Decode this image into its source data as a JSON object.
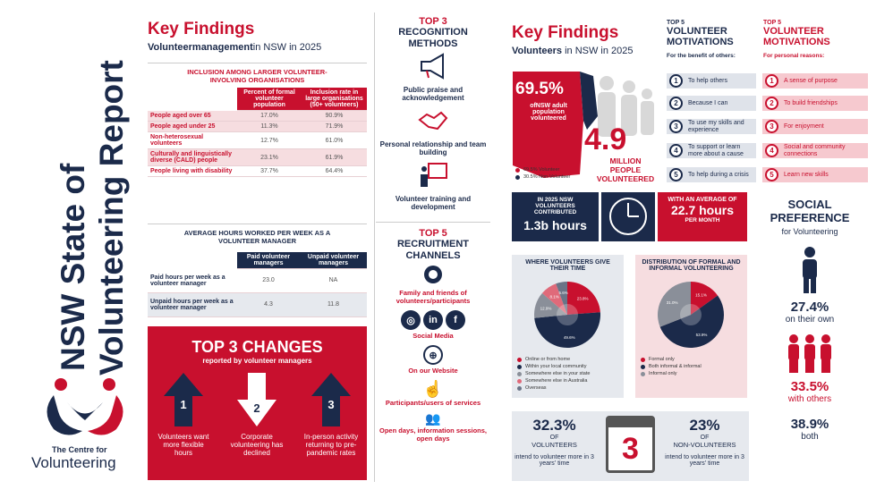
{
  "vertical_title": {
    "line1": "NSW State of",
    "line2": "Volunteering Report"
  },
  "logo": {
    "line1": "The Centre for",
    "line2": "Volunteering"
  },
  "left": {
    "title": "Key Findings",
    "subtitle_bold": "Volunteermanagement",
    "subtitle_rest": "in NSW in 2025",
    "inclusion": {
      "heading": "INCLUSION AMONG LARGER VOLUNTEER-INVOLVING ORGANISATIONS",
      "col1": "Percent of formal volunteer population",
      "col2": "Inclusion rate in large organisations (50+ volunteers)",
      "rows": [
        {
          "label": "People aged over 65",
          "a": "17.0%",
          "b": "90.9%"
        },
        {
          "label": "People aged under 25",
          "a": "11.3%",
          "b": "71.9%"
        },
        {
          "label": "Non-heterosexual volunteers",
          "a": "12.7%",
          "b": "61.0%"
        },
        {
          "label": "Culturally and linguistically diverse (CALD) people",
          "a": "23.1%",
          "b": "61.9%"
        },
        {
          "label": "People living with disability",
          "a": "37.7%",
          "b": "64.4%"
        }
      ]
    },
    "hours": {
      "heading": "AVERAGE HOURS WORKED PER WEEK AS A VOLUNTEER MANAGER",
      "col1": "Paid volunteer managers",
      "col2": "Unpaid volunteer managers",
      "rows": [
        {
          "label": "Paid hours per week as a volunteer manager",
          "a": "23.0",
          "b": "NA"
        },
        {
          "label": "Unpaid hours per week as a volunteer manager",
          "a": "4.3",
          "b": "11.8"
        }
      ]
    },
    "changes": {
      "title": "TOP 3 CHANGES",
      "subtitle": "reported by volunteer managers",
      "items": [
        {
          "n": "1",
          "text": "Volunteers want more flexible hours"
        },
        {
          "n": "2",
          "text": "Corporate volunteering has declined"
        },
        {
          "n": "3",
          "text": "In-person activity returning to pre-pandemic rates"
        }
      ]
    }
  },
  "recognition": {
    "title_red": "TOP 3",
    "title_navy": "RECOGNITION METHODS",
    "items": [
      "Public praise and acknowledgement",
      "Personal relationship and team building",
      "Volunteer training and development"
    ]
  },
  "recruitment": {
    "title_red": "TOP 5",
    "title_navy": "RECRUITMENT CHANNELS",
    "items": [
      "Family and friends of volunteers/participants",
      "Social Media",
      "On our Website",
      "Participants/users of services",
      "Open days, information sessions, open days"
    ]
  },
  "right": {
    "title": "Key Findings",
    "subtitle_bold": "Volunteers",
    "subtitle_rest": "in NSW in 2025",
    "pct": "69.5%",
    "pct_sub": "ofNSW adult population volunteered",
    "million": "4.9",
    "million_sub": "MILLION PEOPLE VOLUNTEERED",
    "legend": [
      "69.5% Volunteer",
      "30.5% Non-Volunteer"
    ],
    "contributed": {
      "top": "IN 2025 NSW VOLUNTEERS CONTRIBUTED",
      "value": "1.3b hours"
    },
    "average": {
      "top": "WITH AN AVERAGE OF",
      "value": "22.7 hours",
      "bottom": "PER MONTH"
    },
    "where": {
      "title": "WHERE VOLUNTEERS GIVE THEIR TIME",
      "legend": [
        "Online or from home",
        "Within your local community",
        "Somewhere else in your state",
        "Somewhere else in Australia",
        "Overseas"
      ]
    },
    "distribution": {
      "title": "DISTRIBUTION OF FORMAL AND INFORMAL VOLUNTEERING",
      "legend": [
        "Formal only",
        "Both informal & informal",
        "Informal only"
      ]
    },
    "future": {
      "left_pct": "32.3%",
      "left_of": "OF",
      "left_who": "VOLUNTEERS",
      "left_text": "intend to volunteer more in 3 years' time",
      "mid": "3",
      "right_pct": "23%",
      "right_of": "OF",
      "right_who": "NON-VOLUNTEERS",
      "right_text": "intend to volunteer more in 3 years' time"
    }
  },
  "motivations": {
    "left_top": "TOP 5",
    "left_title": "VOLUNTEER MOTIVATIONS",
    "left_sub": "For the benefit of others:",
    "left_items": [
      "To help others",
      "Because I can",
      "To use my skills and experience",
      "To support or learn more about a cause",
      "To help during a crisis"
    ],
    "right_top": "TOP 5",
    "right_title": "VOLUNTEER MOTIVATIONS",
    "right_sub": "For personal reasons:",
    "right_items": [
      "A sense of purpose",
      "To build friendships",
      "For enjoyment",
      "Social and community connections",
      "Learn new skills"
    ]
  },
  "social": {
    "title": "SOCIAL PREFERENCE",
    "sub": "for Volunteering",
    "own_pct": "27.4%",
    "own_text": "on their own",
    "others_pct": "33.5%",
    "others_text": "with others",
    "both_pct": "38.9%",
    "both_text": "both"
  },
  "chart_data": [
    {
      "type": "pie",
      "title": "WHERE VOLUNTEERS GIVE THEIR TIME",
      "categories": [
        "Online or from home",
        "Within your local community",
        "Somewhere else in your state",
        "Somewhere else in Australia",
        "Overseas"
      ],
      "values": [
        23.8,
        49.6,
        12.9,
        8.1,
        5.6
      ],
      "colors": [
        "#c8102e",
        "#1b2a4a",
        "#8a8f99",
        "#e06a7a",
        "#6a7487"
      ]
    },
    {
      "type": "pie",
      "title": "DISTRIBUTION OF FORMAL AND INFORMAL VOLUNTEERING",
      "categories": [
        "Formal only",
        "Both informal & informal",
        "Informal only"
      ],
      "values": [
        15.1,
        53.9,
        31.0
      ],
      "colors": [
        "#c8102e",
        "#1b2a4a",
        "#8a8f99"
      ]
    }
  ]
}
